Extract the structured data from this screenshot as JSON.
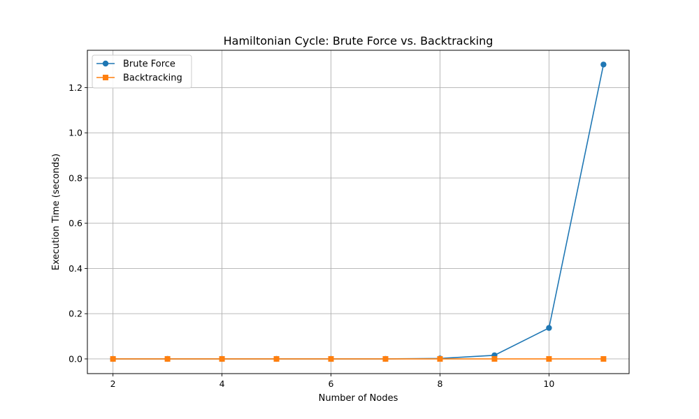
{
  "chart_data": {
    "type": "line",
    "title": "Hamiltonian Cycle: Brute Force vs. Backtracking",
    "xlabel": "Number of Nodes",
    "ylabel": "Execution Time (seconds)",
    "x": [
      2,
      3,
      4,
      5,
      6,
      7,
      8,
      9,
      10,
      11
    ],
    "xlim": [
      1.53,
      11.47
    ],
    "ylim": [
      -0.065,
      1.365
    ],
    "xticks": [
      2,
      4,
      6,
      8,
      10
    ],
    "yticks": [
      0.0,
      0.2,
      0.4,
      0.6,
      0.8,
      1.0,
      1.2
    ],
    "xtick_labels": [
      "2",
      "4",
      "6",
      "8",
      "10"
    ],
    "ytick_labels": [
      "0.0",
      "0.2",
      "0.4",
      "0.6",
      "0.8",
      "1.0",
      "1.2"
    ],
    "grid": true,
    "legend_position": "upper-left",
    "series": [
      {
        "name": "Brute Force",
        "color": "#1f77b4",
        "marker": "circle",
        "values": [
          0.0,
          0.0,
          0.0,
          0.0,
          0.0,
          0.0,
          0.002,
          0.016,
          0.137,
          1.302
        ]
      },
      {
        "name": "Backtracking",
        "color": "#ff7f0e",
        "marker": "square",
        "values": [
          0.0,
          0.0,
          0.0,
          0.0,
          0.0,
          0.0,
          0.0,
          0.0,
          0.0,
          0.0
        ]
      }
    ]
  }
}
